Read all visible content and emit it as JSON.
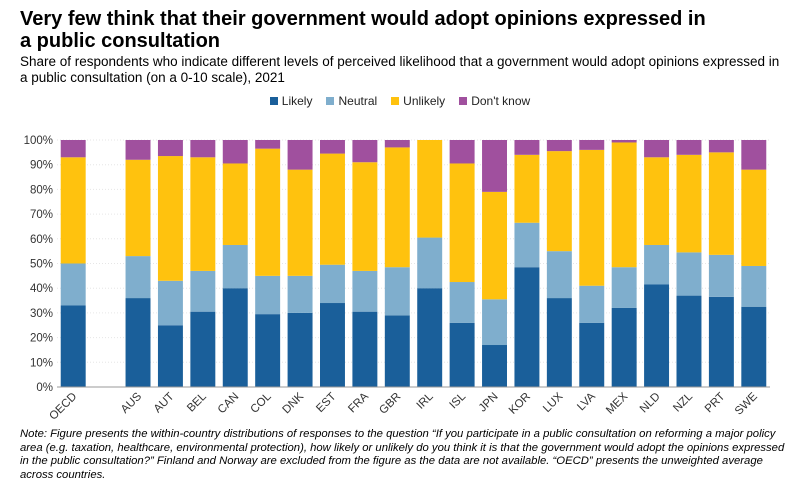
{
  "title": "Very few think that their government would adopt opinions expressed in a public consultation",
  "subtitle": "Share of respondents who indicate different levels of perceived likelihood that a government would adopt opinions expressed in a public consultation (on a 0-10 scale), 2021",
  "note": "Note: Figure presents the within-country distributions of responses to the question “If you participate in a public consultation on reforming a major policy area (e.g. taxation, healthcare, environmental protection), how likely or unlikely do you think it is that the government would adopt the opinions expressed in the public consultation?” Finland and Norway are excluded from the figure as the data are not available. “OECD” presents the unweighted average across countries.",
  "chart_data": {
    "type": "bar",
    "stacked": true,
    "legend_position": "top",
    "ylim": [
      0,
      100
    ],
    "yticks": [
      "0%",
      "10%",
      "20%",
      "30%",
      "40%",
      "50%",
      "60%",
      "70%",
      "80%",
      "90%",
      "100%"
    ],
    "grid": true,
    "categories": [
      "OECD",
      "",
      "AUS",
      "AUT",
      "BEL",
      "CAN",
      "COL",
      "DNK",
      "EST",
      "FRA",
      "GBR",
      "IRL",
      "ISL",
      "JPN",
      "KOR",
      "LUX",
      "LVA",
      "MEX",
      "NLD",
      "NZL",
      "PRT",
      "SWE"
    ],
    "series": [
      {
        "name": "Likely",
        "color": "#1a5f9a",
        "values": [
          33,
          null,
          36,
          25,
          30.5,
          40,
          29.5,
          30,
          34,
          30.5,
          29,
          40,
          26,
          17,
          48.5,
          36,
          26,
          32,
          41.5,
          37,
          36.5,
          32.5
        ]
      },
      {
        "name": "Neutral",
        "color": "#7faecd",
        "values": [
          17,
          null,
          17,
          18,
          16.5,
          17.5,
          15.5,
          15,
          15.5,
          16.5,
          19.5,
          20.5,
          16.5,
          18.5,
          18,
          19,
          15,
          16.5,
          16,
          17.5,
          17,
          16.5
        ]
      },
      {
        "name": "Unlikely",
        "color": "#ffc20e",
        "values": [
          43,
          null,
          39,
          50.5,
          46,
          33,
          51.5,
          43,
          45,
          44,
          48.5,
          39.5,
          48,
          43.5,
          27.5,
          40.5,
          55,
          50.5,
          35.5,
          39.5,
          41.5,
          39
        ]
      },
      {
        "name": "Don't know",
        "color": "#a0509e",
        "values": [
          7,
          null,
          8,
          6.5,
          7,
          9.5,
          3.5,
          12,
          5.5,
          9,
          3,
          0,
          9.5,
          21,
          6,
          4.5,
          4,
          1,
          7,
          6,
          5,
          12
        ]
      }
    ]
  }
}
